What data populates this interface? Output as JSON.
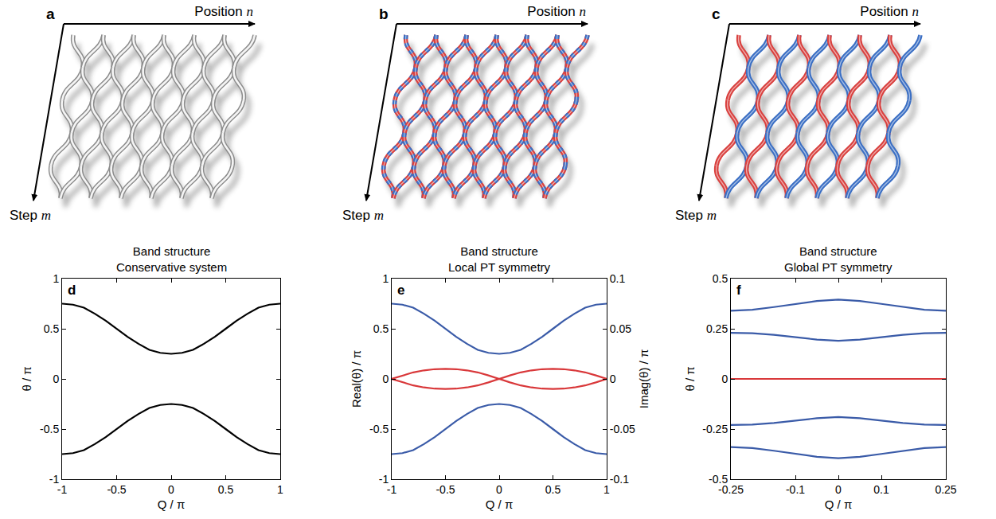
{
  "diagrams": [
    {
      "letter": "a",
      "x_axis": "Position n",
      "y_axis": "Step m"
    },
    {
      "letter": "b",
      "x_axis": "Position n",
      "y_axis": "Step m"
    },
    {
      "letter": "c",
      "x_axis": "Position n",
      "y_axis": "Step m"
    }
  ],
  "chart_data": [
    {
      "type": "line",
      "letter": "d",
      "title": "Band structure",
      "subtitle": "Conservative system",
      "x_label": "Q / π",
      "y_label": "θ / π",
      "xlim": [
        -1,
        1
      ],
      "xticks": [
        -1,
        -0.5,
        0,
        0.5,
        1
      ],
      "ylim": [
        -1,
        1
      ],
      "yticks": [
        -1,
        -0.5,
        0,
        0.5,
        1
      ],
      "grid": false,
      "x": [
        -1,
        -0.9,
        -0.8,
        -0.7,
        -0.6,
        -0.5,
        -0.4,
        -0.3,
        -0.2,
        -0.1,
        0,
        0.1,
        0.2,
        0.3,
        0.4,
        0.5,
        0.6,
        0.7,
        0.8,
        0.9,
        1
      ],
      "series": [
        {
          "color": "#000000",
          "values": [
            0.75,
            0.74,
            0.71,
            0.65,
            0.58,
            0.5,
            0.42,
            0.35,
            0.29,
            0.26,
            0.25,
            0.26,
            0.29,
            0.35,
            0.42,
            0.5,
            0.58,
            0.65,
            0.71,
            0.74,
            0.75
          ]
        },
        {
          "color": "#000000",
          "values": [
            -0.75,
            -0.74,
            -0.71,
            -0.65,
            -0.58,
            -0.5,
            -0.42,
            -0.35,
            -0.29,
            -0.26,
            -0.25,
            -0.26,
            -0.29,
            -0.35,
            -0.42,
            -0.5,
            -0.58,
            -0.65,
            -0.71,
            -0.74,
            -0.75
          ]
        }
      ]
    },
    {
      "type": "line",
      "letter": "e",
      "title": "Band structure",
      "subtitle": "Local PT symmetry",
      "x_label": "Q / π",
      "y_label": "Real(θ) / π",
      "y2_label": "Imag(θ) / π",
      "xlim": [
        -1,
        1
      ],
      "xticks": [
        -1,
        -0.5,
        0,
        0.5,
        1
      ],
      "ylim": [
        -1,
        1
      ],
      "yticks": [
        -1,
        -0.5,
        0,
        0.5,
        1
      ],
      "y2lim": [
        -0.1,
        0.1
      ],
      "y2ticks": [
        -0.1,
        -0.05,
        0,
        0.05,
        0.1
      ],
      "grid": false,
      "x": [
        -1,
        -0.9,
        -0.8,
        -0.7,
        -0.6,
        -0.5,
        -0.4,
        -0.3,
        -0.2,
        -0.1,
        0,
        0.1,
        0.2,
        0.3,
        0.4,
        0.5,
        0.6,
        0.7,
        0.8,
        0.9,
        1
      ],
      "series": [
        {
          "color": "#3a5ba8",
          "values": [
            0.75,
            0.74,
            0.71,
            0.65,
            0.58,
            0.5,
            0.42,
            0.35,
            0.29,
            0.26,
            0.25,
            0.26,
            0.29,
            0.35,
            0.42,
            0.5,
            0.58,
            0.65,
            0.71,
            0.74,
            0.75
          ]
        },
        {
          "color": "#3a5ba8",
          "values": [
            -0.75,
            -0.74,
            -0.71,
            -0.65,
            -0.58,
            -0.5,
            -0.42,
            -0.35,
            -0.29,
            -0.26,
            -0.25,
            -0.26,
            -0.29,
            -0.35,
            -0.42,
            -0.5,
            -0.58,
            -0.65,
            -0.71,
            -0.74,
            -0.75
          ]
        },
        {
          "color": "#d9383a",
          "axis": "y2",
          "values": [
            0,
            0.0035,
            0.0065,
            0.0085,
            0.0097,
            0.01,
            0.0097,
            0.0085,
            0.0065,
            0.0035,
            0,
            0.0035,
            0.0065,
            0.0085,
            0.0097,
            0.01,
            0.0097,
            0.0085,
            0.0065,
            0.0035,
            0
          ]
        },
        {
          "color": "#d9383a",
          "axis": "y2",
          "values": [
            0,
            -0.0035,
            -0.0065,
            -0.0085,
            -0.0097,
            -0.01,
            -0.0097,
            -0.0085,
            -0.0065,
            -0.0035,
            0,
            -0.0035,
            -0.0065,
            -0.0085,
            -0.0097,
            -0.01,
            -0.0097,
            -0.0085,
            -0.0065,
            -0.0035,
            0
          ]
        }
      ]
    },
    {
      "type": "line",
      "letter": "f",
      "title": "Band structure",
      "subtitle": "Global PT symmetry",
      "x_label": "Q / π",
      "y_label": "θ / π",
      "xlim": [
        -0.25,
        0.25
      ],
      "xticks": [
        -0.25,
        -0.1,
        0,
        0.1,
        0.25
      ],
      "ylim": [
        -0.5,
        0.5
      ],
      "yticks": [
        -0.5,
        -0.25,
        0,
        0.25,
        0.5
      ],
      "grid": false,
      "x": [
        -0.25,
        -0.2,
        -0.15,
        -0.1,
        -0.05,
        0,
        0.05,
        0.1,
        0.15,
        0.2,
        0.25
      ],
      "series": [
        {
          "color": "#3a5ba8",
          "values": [
            0.34,
            0.345,
            0.358,
            0.374,
            0.388,
            0.395,
            0.388,
            0.374,
            0.358,
            0.345,
            0.34
          ]
        },
        {
          "color": "#3a5ba8",
          "values": [
            0.23,
            0.228,
            0.22,
            0.208,
            0.196,
            0.19,
            0.196,
            0.208,
            0.22,
            0.228,
            0.23
          ]
        },
        {
          "color": "#d9383a",
          "values": [
            0,
            0,
            0,
            0,
            0,
            0,
            0,
            0,
            0,
            0,
            0
          ]
        },
        {
          "color": "#3a5ba8",
          "values": [
            -0.23,
            -0.228,
            -0.22,
            -0.208,
            -0.196,
            -0.19,
            -0.196,
            -0.208,
            -0.22,
            -0.228,
            -0.23
          ]
        },
        {
          "color": "#3a5ba8",
          "values": [
            -0.34,
            -0.345,
            -0.358,
            -0.374,
            -0.388,
            -0.395,
            -0.388,
            -0.374,
            -0.358,
            -0.345,
            -0.34
          ]
        }
      ]
    }
  ]
}
